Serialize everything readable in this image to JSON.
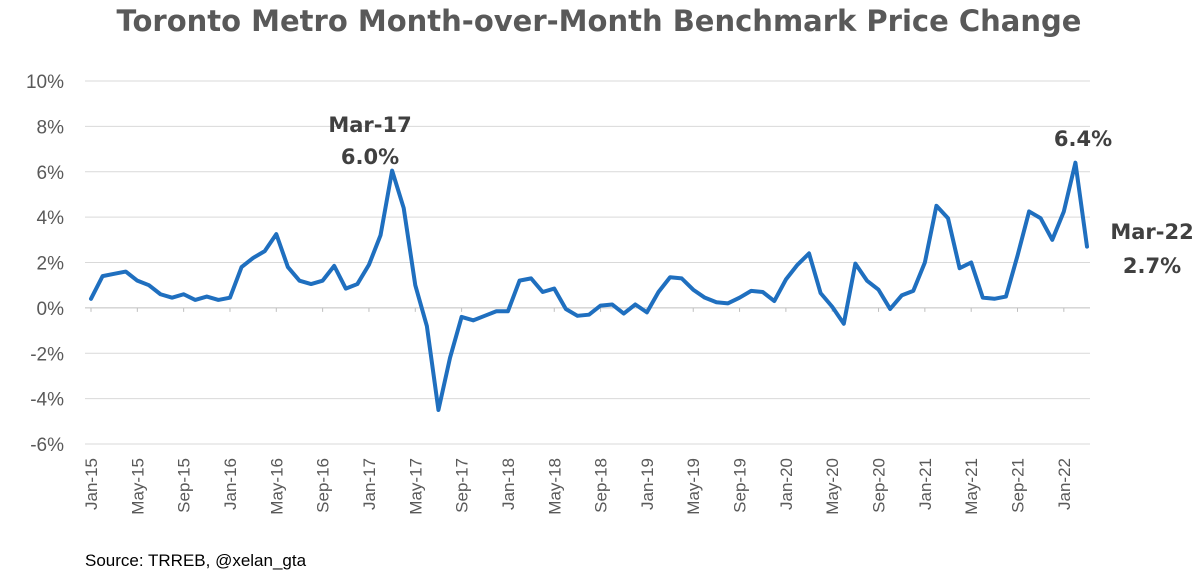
{
  "chart_data": {
    "type": "line",
    "title": "Toronto Metro Month-over-Month Benchmark Price Change",
    "source": "Source: TRREB, @xelan_gta",
    "color": "#1f6fbf",
    "ylim": [
      -6,
      10
    ],
    "yticks": [
      -6,
      -4,
      -2,
      0,
      2,
      4,
      6,
      8,
      10
    ],
    "ytick_labels": [
      "-6%",
      "-4%",
      "-2%",
      "0%",
      "2%",
      "4%",
      "6%",
      "8%",
      "10%"
    ],
    "grid": true,
    "x_start": "Jan-15",
    "x_end": "Mar-22",
    "xtick_labels": [
      "Jan-15",
      "May-15",
      "Sep-15",
      "Jan-16",
      "May-16",
      "Sep-16",
      "Jan-17",
      "May-17",
      "Sep-17",
      "Jan-18",
      "May-18",
      "Sep-18",
      "Jan-19",
      "May-19",
      "Sep-19",
      "Jan-20",
      "May-20",
      "Sep-20",
      "Jan-21",
      "May-21",
      "Sep-21",
      "Jan-22"
    ],
    "series": [
      {
        "values": [
          0.4,
          1.4,
          1.5,
          1.6,
          1.2,
          1.0,
          0.6,
          0.45,
          0.6,
          0.35,
          0.5,
          0.35,
          0.45,
          1.8,
          2.2,
          2.5,
          3.25,
          1.8,
          1.2,
          1.05,
          1.2,
          1.85,
          0.85,
          1.05,
          1.9,
          3.2,
          6.05,
          4.4,
          1.0,
          -0.8,
          -4.5,
          -2.2,
          -0.4,
          -0.55,
          -0.35,
          -0.15,
          -0.15,
          1.2,
          1.3,
          0.7,
          0.85,
          -0.05,
          -0.35,
          -0.3,
          0.1,
          0.15,
          -0.25,
          0.15,
          -0.2,
          0.7,
          1.35,
          1.3,
          0.8,
          0.45,
          0.25,
          0.2,
          0.45,
          0.75,
          0.7,
          0.3,
          1.25,
          1.9,
          2.4,
          0.65,
          0.05,
          -0.7,
          1.95,
          1.2,
          0.8,
          -0.05,
          0.55,
          0.75,
          2.0,
          4.5,
          3.95,
          1.75,
          2.0,
          0.45,
          0.4,
          0.5,
          2.3,
          4.25,
          3.95,
          3.0,
          4.25,
          6.4,
          2.7
        ]
      }
    ],
    "annotations": [
      {
        "label": "Mar-17",
        "value_label": "6.0%"
      },
      {
        "label": "",
        "value_label": "6.4%"
      },
      {
        "label": "Mar-22",
        "value_label": "2.7%"
      }
    ]
  }
}
